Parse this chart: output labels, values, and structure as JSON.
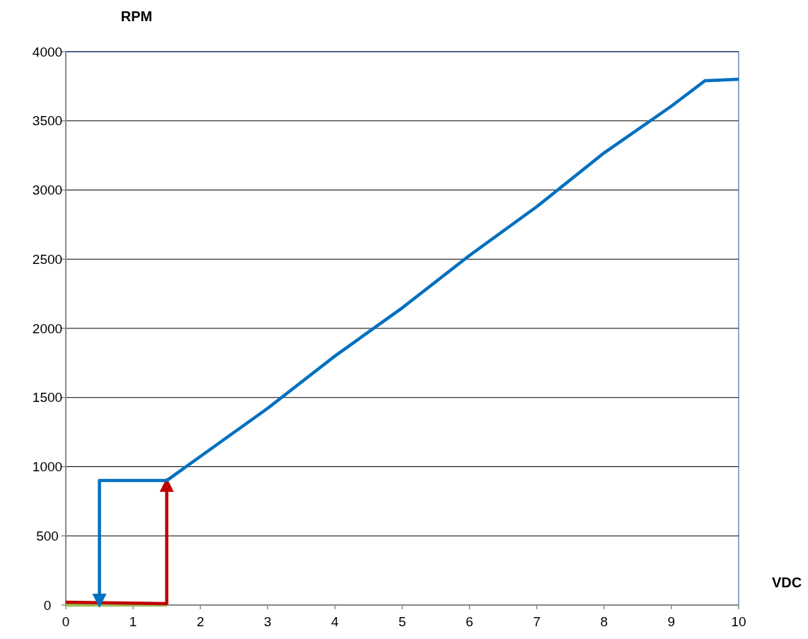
{
  "chart_data": {
    "type": "line",
    "ylabel": "RPM",
    "xlabel": "VDC",
    "xlim": [
      0,
      10
    ],
    "ylim": [
      0,
      4000
    ],
    "xticks": [
      0,
      1,
      2,
      3,
      4,
      5,
      6,
      7,
      8,
      9,
      10
    ],
    "yticks": [
      0,
      500,
      1000,
      1500,
      2000,
      2500,
      3000,
      3500,
      4000
    ],
    "grid": "y",
    "marker": "none",
    "line_style": "solid",
    "series": [
      {
        "color": "#9bbb59",
        "x": [
          0,
          1.5
        ],
        "values": [
          0,
          0
        ]
      },
      {
        "color": "#c00000",
        "x": [
          0,
          1.5,
          1.5
        ],
        "values": [
          20,
          10,
          900
        ]
      },
      {
        "color": "#0070c0",
        "x": [
          0.5,
          0.5,
          1.5,
          2,
          3,
          4,
          5,
          6,
          7,
          8,
          9,
          9.5,
          10
        ],
        "values": [
          0,
          900,
          900,
          1074,
          1422,
          1800,
          2148,
          2527,
          2880,
          3268,
          3606,
          3790,
          3800
        ]
      }
    ]
  }
}
